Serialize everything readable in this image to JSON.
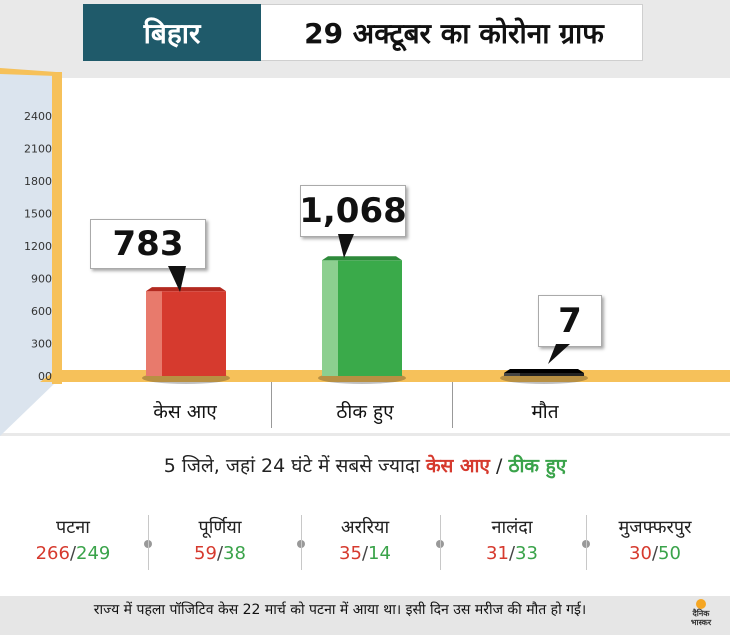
{
  "header": {
    "state": "बिहार",
    "title": "29 अक्टूबर का कोरोना ग्राफ"
  },
  "chart_data": {
    "type": "bar",
    "categories": [
      "केस आए",
      "ठीक हुए",
      "मौत"
    ],
    "values": [
      783,
      1068,
      7
    ],
    "value_labels": [
      "783",
      "1,068",
      "7"
    ],
    "colors": [
      "#d63a2e",
      "#3aaa4a",
      "#222222"
    ],
    "yticks": [
      "2400",
      "2100",
      "1800",
      "1500",
      "1200",
      "900",
      "600",
      "300",
      "00"
    ],
    "ylim": [
      0,
      2400
    ],
    "grid": false
  },
  "districts_section": {
    "subtitle_prefix": "5 जिले, जहां 24 घंटे में सबसे ज्यादा",
    "cases_label": "केस आए",
    "separator": "/",
    "recovered_label": "ठीक हुए",
    "districts": [
      {
        "name": "पटना",
        "cases": "266",
        "recovered": "249"
      },
      {
        "name": "पूर्णिया",
        "cases": "59",
        "recovered": "38"
      },
      {
        "name": "अररिया",
        "cases": "35",
        "recovered": "14"
      },
      {
        "name": "नालंदा",
        "cases": "31",
        "recovered": "33"
      },
      {
        "name": "मुजफ्फरपुर",
        "cases": "30",
        "recovered": "50"
      }
    ]
  },
  "footer": {
    "note": "राज्य में पहला पॉजिटिव केस 22 मार्च को पटना में आया था। इसी दिन उस मरीज की मौत हो गई।",
    "logo_line1": "दैनिक",
    "logo_line2": "भास्कर"
  },
  "colors": {
    "header_bg": "#1f5a6a",
    "axis_yellow": "#f6c15a",
    "cases_red": "#d63a2e",
    "recovered_green": "#3aa34a"
  }
}
